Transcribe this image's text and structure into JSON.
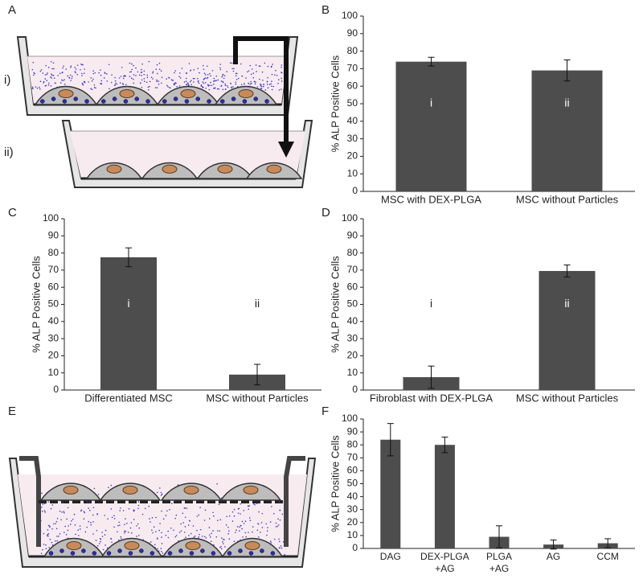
{
  "labels": {
    "a": "A",
    "b": "B",
    "c": "C",
    "d": "D",
    "e": "E",
    "f": "F",
    "i": "i)",
    "ii": "ii)"
  },
  "chart_data": [
    {
      "type": "bar",
      "ylabel": "% ALP Positive Cells",
      "categories": [
        [
          "MSC with DEX-PLGA"
        ],
        [
          "MSC without Particles"
        ]
      ],
      "values": [
        74,
        69
      ],
      "errors": [
        2.5,
        6
      ],
      "bar_labels": [
        "i",
        "ii"
      ],
      "ylim": [
        0,
        100
      ],
      "yticks": [
        0,
        10,
        20,
        30,
        40,
        50,
        60,
        70,
        80,
        90,
        100
      ],
      "color": "#4d4d4d"
    },
    {
      "type": "bar",
      "ylabel": "% ALP Positive Cells",
      "categories": [
        [
          "Differentiated MSC"
        ],
        [
          "MSC without Particles"
        ]
      ],
      "values": [
        77.5,
        9
      ],
      "errors": [
        5.5,
        6
      ],
      "bar_labels": [
        "i",
        "ii"
      ],
      "ylim": [
        0,
        100
      ],
      "yticks": [
        0,
        10,
        20,
        30,
        40,
        50,
        60,
        70,
        80,
        90,
        100
      ],
      "color": "#4d4d4d"
    },
    {
      "type": "bar",
      "ylabel": "% ALP Positive Cells",
      "categories": [
        [
          "Fibroblast with DEX-PLGA"
        ],
        [
          "MSC without Particles"
        ]
      ],
      "values": [
        7.5,
        69.5
      ],
      "errors": [
        6.5,
        3.5
      ],
      "bar_labels": [
        "i",
        "ii"
      ],
      "ylim": [
        0,
        100
      ],
      "yticks": [
        0,
        10,
        20,
        30,
        40,
        50,
        60,
        70,
        80,
        90,
        100
      ],
      "color": "#4d4d4d"
    },
    {
      "type": "bar",
      "ylabel": "% ALP Positive Cells",
      "categories": [
        [
          "DAG"
        ],
        [
          "DEX-PLGA",
          "+AG"
        ],
        [
          "PLGA",
          "+AG"
        ],
        [
          "AG"
        ],
        [
          "CCM"
        ]
      ],
      "values": [
        84,
        80,
        9,
        3,
        4
      ],
      "errors": [
        12.5,
        6,
        8.5,
        3.5,
        3.5
      ],
      "ylim": [
        0,
        100
      ],
      "yticks": [
        0,
        10,
        20,
        30,
        40,
        50,
        60,
        70,
        80,
        90,
        100
      ],
      "color": "#4d4d4d"
    }
  ]
}
